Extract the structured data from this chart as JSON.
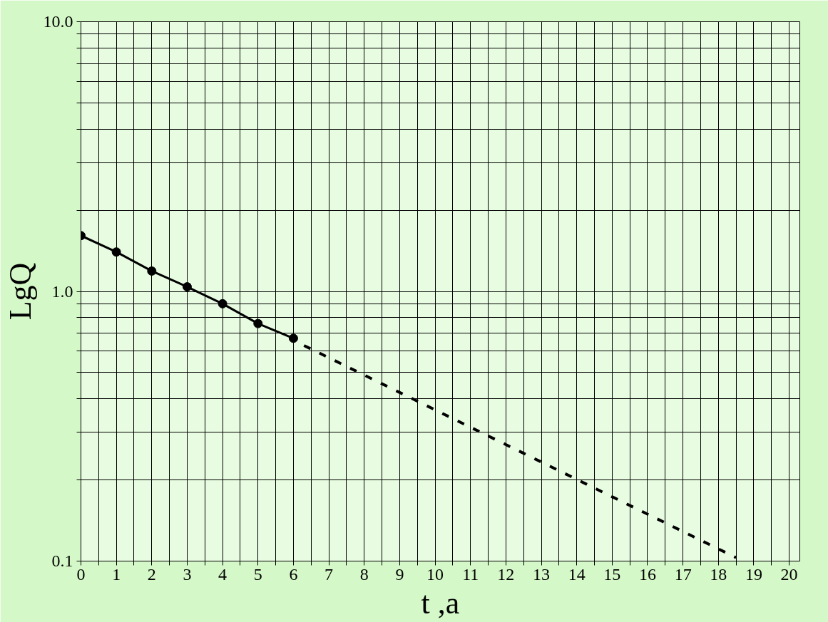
{
  "chart_data": {
    "type": "line",
    "xlabel": "t ,a",
    "ylabel": "LgQ",
    "log": "y",
    "grid": true,
    "xlim": [
      0,
      20.3
    ],
    "ylim": [
      0.1,
      10
    ],
    "xticks": [
      0,
      {
        "value": 0.5,
        "label": null
      },
      1,
      {
        "value": 1.5,
        "label": null
      },
      2,
      {
        "value": 2.5,
        "label": null
      },
      3,
      {
        "value": 3.5,
        "label": null
      },
      4,
      {
        "value": 4.5,
        "label": null
      },
      5,
      {
        "value": 5.5,
        "label": null
      },
      6,
      {
        "value": 6.5,
        "label": null
      },
      7,
      {
        "value": 7.5,
        "label": null
      },
      8,
      {
        "value": 8.5,
        "label": null
      },
      9,
      {
        "value": 9.5,
        "label": null
      },
      10,
      {
        "value": 10.5,
        "label": null
      },
      11,
      {
        "value": 11.5,
        "label": null
      },
      12,
      {
        "value": 12.5,
        "label": null
      },
      13,
      {
        "value": 13.5,
        "label": null
      },
      14,
      {
        "value": 14.5,
        "label": null
      },
      15,
      {
        "value": 15.5,
        "label": null
      },
      16,
      {
        "value": 16.5,
        "label": null
      },
      17,
      {
        "value": 17.5,
        "label": null
      },
      18,
      {
        "value": 18.5,
        "label": null
      },
      19,
      {
        "value": 19.5,
        "label": null
      },
      20
    ],
    "yticks": [
      {
        "value": 0.1,
        "label": "0.1"
      },
      {
        "value": 0.2,
        "label": null
      },
      {
        "value": 0.3,
        "label": null
      },
      {
        "value": 0.4,
        "label": null
      },
      {
        "value": 0.5,
        "label": null
      },
      {
        "value": 0.6,
        "label": null
      },
      {
        "value": 0.7,
        "label": null
      },
      {
        "value": 0.8,
        "label": null
      },
      {
        "value": 0.9,
        "label": null
      },
      {
        "value": 1.0,
        "label": "1.0"
      },
      {
        "value": 2,
        "label": null
      },
      {
        "value": 3,
        "label": null
      },
      {
        "value": 4,
        "label": null
      },
      {
        "value": 5,
        "label": null
      },
      {
        "value": 6,
        "label": null
      },
      {
        "value": 7,
        "label": null
      },
      {
        "value": 8,
        "label": null
      },
      {
        "value": 9,
        "label": null
      },
      {
        "value": 10,
        "label": "10.0"
      }
    ],
    "series": [
      {
        "marker": "circle",
        "line_style": "solid",
        "color": "#000000",
        "x": [
          0,
          1,
          2,
          3,
          4,
          5,
          6
        ],
        "values": [
          1.61,
          1.4,
          1.19,
          1.04,
          0.9,
          0.76,
          0.67
        ]
      },
      {
        "marker": "none",
        "line_style": "dashed",
        "color": "#000000",
        "x": [
          6.3,
          18.5
        ],
        "values": [
          0.63,
          0.103
        ]
      }
    ]
  }
}
